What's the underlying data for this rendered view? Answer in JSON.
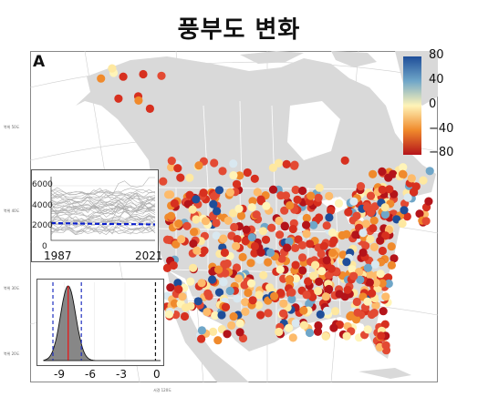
{
  "title": "풍부도 변화",
  "panel_label": "A",
  "latitude_labels": [
    "북위 50도",
    "북위 40도",
    "북위 30도",
    "북위 20도"
  ],
  "longitude_label": "서경 120도",
  "colorbar": {
    "ticks": [
      "80",
      "40",
      "0",
      "−40",
      "−80"
    ],
    "colors": [
      "#1f4e99",
      "#6fa6c8",
      "#fff4b8",
      "#f08a2c",
      "#b4141a"
    ]
  },
  "colors": {
    "land": "#d9d9d9",
    "ocean": "#ffffff",
    "border": "#ffffff"
  },
  "chart_data": [
    {
      "type": "line",
      "xlim": [
        1987,
        2021
      ],
      "ylim": [
        0,
        7000
      ],
      "x_ticks": [
        "1987",
        "2021"
      ],
      "y_ticks": [
        "0",
        "2000",
        "4000",
        "6000"
      ],
      "series": [
        {
          "x": [
            1987,
            1995,
            2005,
            2015,
            2021
          ],
          "values": [
            1900,
            1850,
            1800,
            1780,
            1750
          ]
        }
      ]
    },
    {
      "type": "area",
      "x_ticks": [
        "-9",
        "-6",
        "-3",
        "0"
      ],
      "xlim": [
        -11,
        0.5
      ]
    }
  ]
}
